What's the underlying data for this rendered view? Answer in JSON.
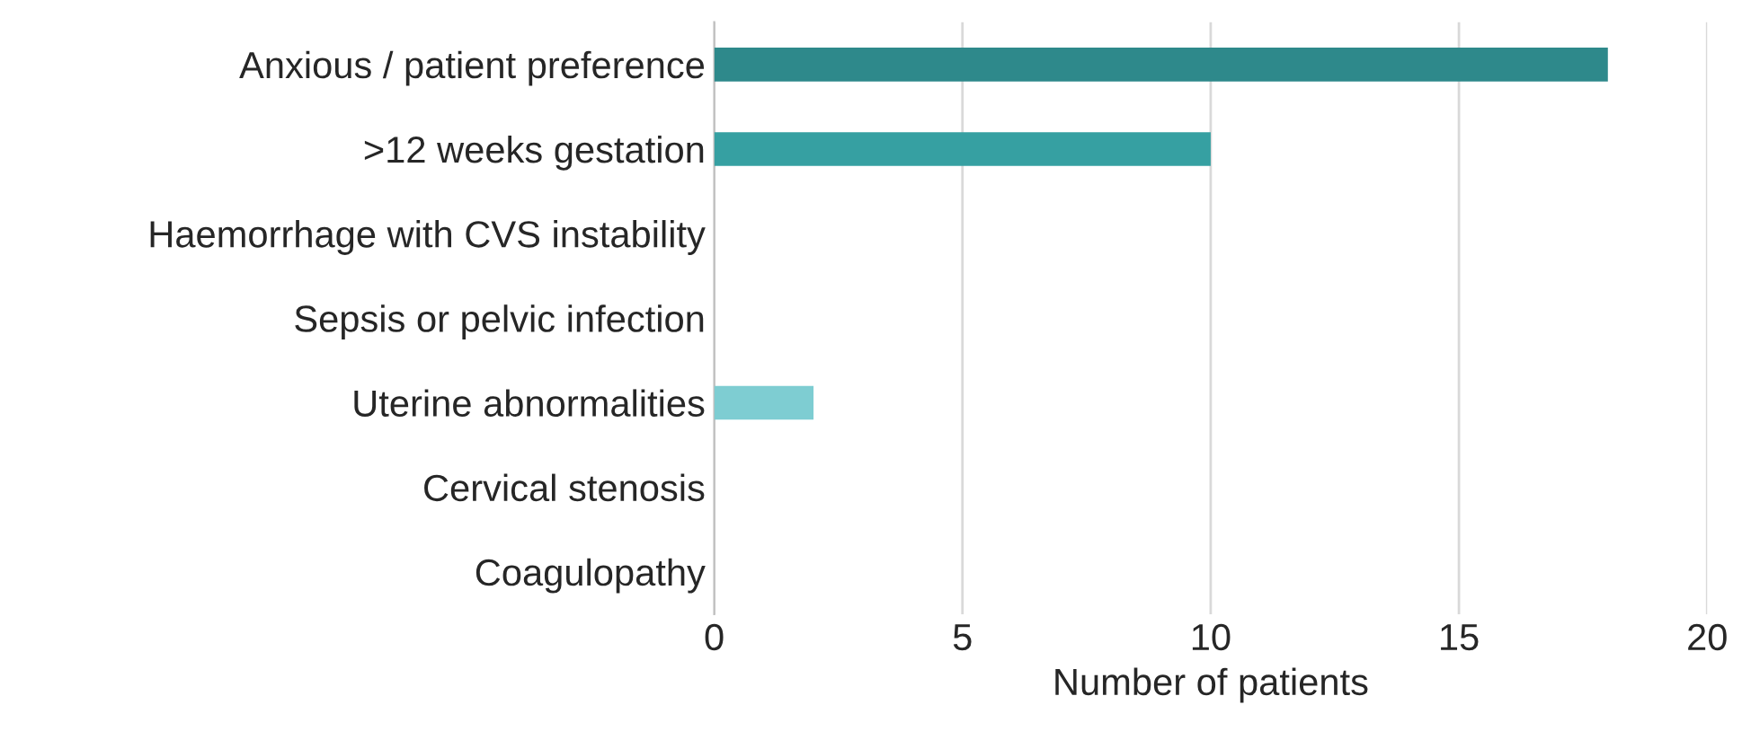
{
  "chart_data": {
    "type": "bar",
    "orientation": "horizontal",
    "xlabel": "Number of patients",
    "categories": [
      "Anxious / patient preference",
      ">12 weeks gestation",
      "Haemorrhage with CVS instability",
      "Sepsis or pelvic infection",
      "Uterine abnormalities",
      "Cervical stenosis",
      "Coagulopathy"
    ],
    "values": [
      18,
      10,
      0,
      0,
      2,
      0,
      0
    ],
    "colors": [
      "#2e898b",
      "#36a0a2",
      "#5bb8bc",
      "#5bb8bc",
      "#7ecdd2",
      "#7ecdd2",
      "#7ecdd2"
    ],
    "xlim": [
      0,
      20
    ],
    "xticks": [
      0,
      5,
      10,
      15,
      20
    ],
    "grid": "x"
  }
}
